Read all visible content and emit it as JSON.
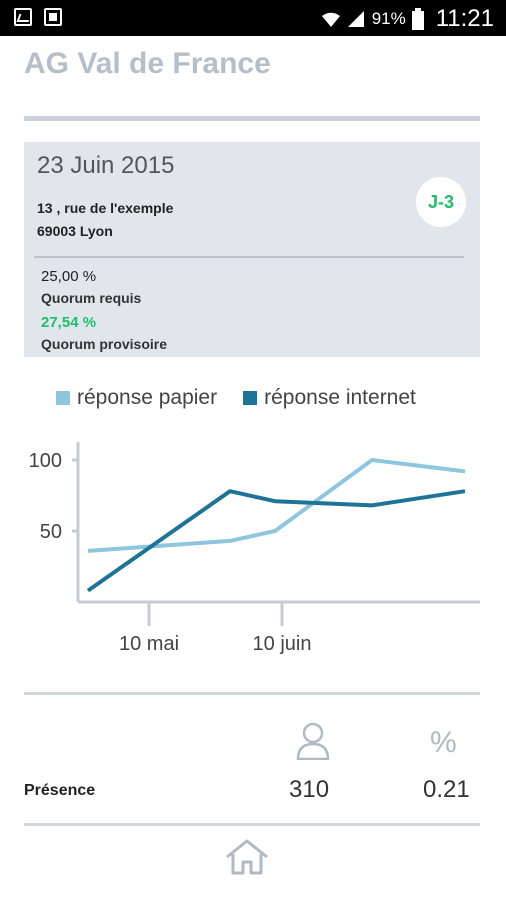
{
  "status_bar": {
    "battery": "91%",
    "time": "11:21",
    "icons": [
      "gallery-icon",
      "clipboard-icon",
      "wifi-icon",
      "signal-icon",
      "battery-icon"
    ]
  },
  "header": {
    "title": "AG Val de France"
  },
  "meeting": {
    "date": "23 Juin 2015",
    "address_line1": "13 , rue de l'exemple",
    "address_line2": "69003 Lyon",
    "countdown": "J-3",
    "quorum_required_value": "25,00 %",
    "quorum_required_label": "Quorum requis",
    "quorum_provisional_value": "27,54 %",
    "quorum_provisional_label": "Quorum provisoire"
  },
  "colors": {
    "paper": "#8ec6dd",
    "internet": "#1e7496",
    "quorum_ok": "#1fbf6a"
  },
  "chart_data": {
    "type": "line",
    "x_tick_labels": [
      "10 mai",
      "10 juin"
    ],
    "y_tick_labels": [
      "100",
      "50"
    ],
    "ylim": [
      0,
      110
    ],
    "x": [
      0,
      1,
      2,
      3,
      4
    ],
    "legend_position": "top",
    "series": [
      {
        "name": "réponse papier",
        "values": [
          36,
          43,
          50,
          100,
          92
        ]
      },
      {
        "name": "réponse internet",
        "values": [
          8,
          78,
          71,
          68,
          78
        ]
      }
    ]
  },
  "presence": {
    "label": "Présence",
    "count": "310",
    "percentage": "0.21",
    "percent_symbol": "%"
  }
}
